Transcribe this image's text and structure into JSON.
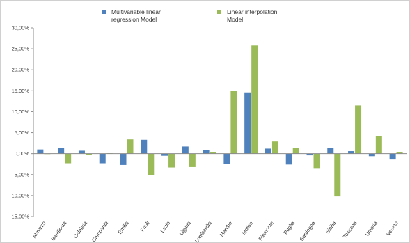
{
  "chart_data": {
    "type": "bar",
    "categories": [
      "Abruzzo",
      "Basilicata",
      "Calabria",
      "Campania",
      "Emilia",
      "Friuli",
      "Lazio",
      "Liguria",
      "Lombardia",
      "Marche",
      "Molise",
      "Piemonte",
      "Puglia",
      "Sardegna",
      "Sicilia",
      "Toscana",
      "Umbria",
      "Veneto"
    ],
    "series": [
      {
        "name": "Multivariable linear regression Model",
        "name_lines": [
          "Multivariable linear",
          "regression Model"
        ],
        "color": "#4F81BD",
        "values": [
          1.0,
          1.3,
          0.7,
          -2.3,
          -2.7,
          3.3,
          -0.5,
          1.7,
          0.8,
          -2.4,
          14.6,
          1.2,
          -2.6,
          -0.4,
          1.3,
          0.6,
          -0.6,
          -1.4
        ]
      },
      {
        "name": "Linear interpolation Model",
        "name_lines": [
          "Linear interpolation",
          "Model"
        ],
        "color": "#9BBB59",
        "values": [
          -0.1,
          -2.3,
          -0.3,
          0.1,
          3.4,
          -5.2,
          -3.3,
          -3.2,
          0.3,
          15.0,
          25.8,
          2.9,
          1.4,
          -3.6,
          -10.2,
          11.5,
          4.2,
          0.3
        ]
      }
    ],
    "yticks": [
      "30,00%",
      "25,00%",
      "20,00%",
      "15,00%",
      "10,00%",
      "5,00%",
      "0,00%",
      "-5,00%",
      "-10,00%",
      "-15,00%"
    ],
    "ylim": [
      -15,
      30
    ],
    "legend_position": "top",
    "grid": false
  }
}
